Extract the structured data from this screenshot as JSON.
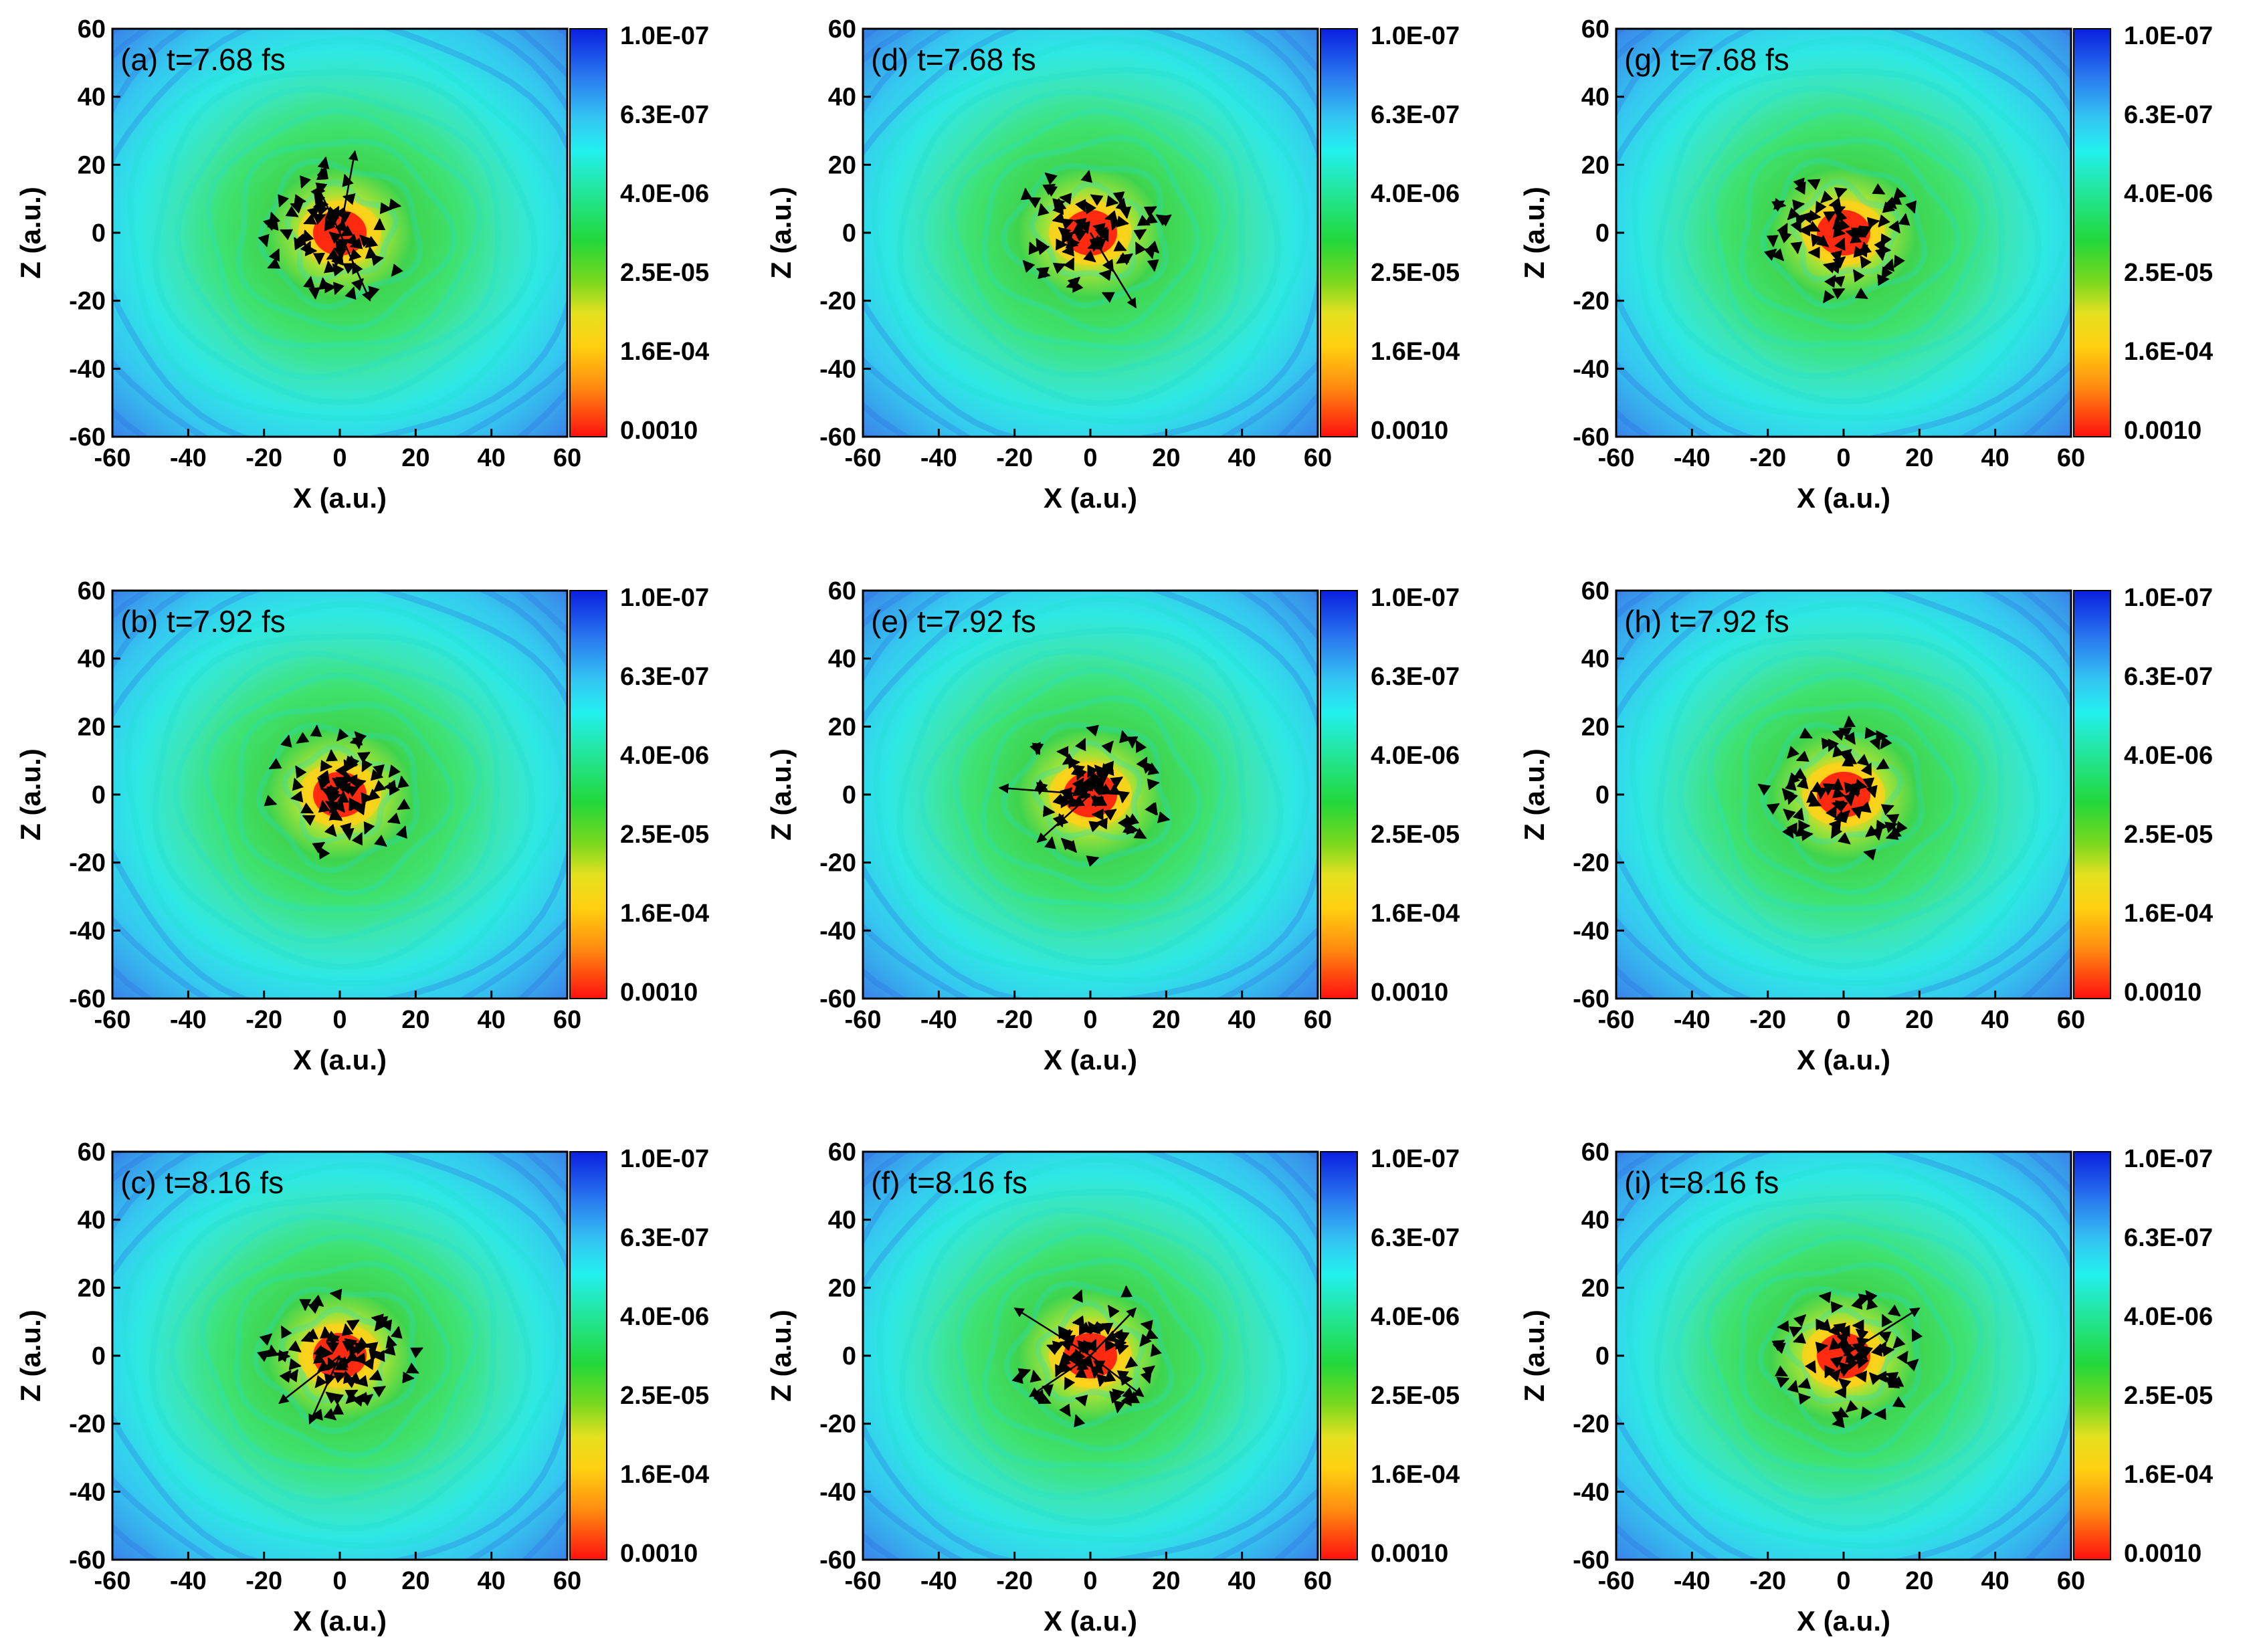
{
  "figure": {
    "description_title": ""
  },
  "chart_data": [
    {
      "type": "heatmap",
      "panel": "(a)",
      "title": "(a) t=7.68 fs",
      "xlabel": "X (a.u.)",
      "ylabel": "Z (a.u.)",
      "xlim": [
        -60,
        60
      ],
      "ylim": [
        -60,
        60
      ],
      "xticks": [
        -60,
        -40,
        -20,
        0,
        20,
        40,
        60
      ],
      "yticks": [
        60,
        40,
        20,
        0,
        -20,
        -40,
        -60
      ],
      "colorbar_ticks": [
        "1.0E-07",
        "6.3E-07",
        "4.0E-06",
        "2.5E-05",
        "1.6E-04",
        "0.0010"
      ],
      "colorbar_scale": "log",
      "colorbar_range": [
        1e-07,
        0.001
      ],
      "core_center": [
        0,
        0
      ],
      "arrows": [
        [
          0,
          0,
          4,
          24
        ],
        [
          0,
          0,
          -6,
          14
        ],
        [
          0,
          0,
          8,
          -20
        ]
      ]
    },
    {
      "type": "heatmap",
      "panel": "(b)",
      "title": "(b) t=7.92 fs",
      "xlabel": "X (a.u.)",
      "ylabel": "Z (a.u.)",
      "xlim": [
        -60,
        60
      ],
      "ylim": [
        -60,
        60
      ],
      "xticks": [
        -60,
        -40,
        -20,
        0,
        20,
        40,
        60
      ],
      "yticks": [
        60,
        40,
        20,
        0,
        -20,
        -40,
        -60
      ],
      "colorbar_ticks": [
        "1.0E-07",
        "6.3E-07",
        "4.0E-06",
        "2.5E-05",
        "1.6E-04",
        "0.0010"
      ],
      "colorbar_scale": "log",
      "colorbar_range": [
        1e-07,
        0.001
      ],
      "core_center": [
        0,
        0
      ],
      "arrows": []
    },
    {
      "type": "heatmap",
      "panel": "(c)",
      "title": "(c) t=8.16 fs",
      "xlabel": "X (a.u.)",
      "ylabel": "Z (a.u.)",
      "xlim": [
        -60,
        60
      ],
      "ylim": [
        -60,
        60
      ],
      "xticks": [
        -60,
        -40,
        -20,
        0,
        20,
        40,
        60
      ],
      "yticks": [
        60,
        40,
        20,
        0,
        -20,
        -40,
        -60
      ],
      "colorbar_ticks": [
        "1.0E-07",
        "6.3E-07",
        "4.0E-06",
        "2.5E-05",
        "1.6E-04",
        "0.0010"
      ],
      "colorbar_scale": "log",
      "colorbar_range": [
        1e-07,
        0.001
      ],
      "core_center": [
        0,
        0
      ],
      "arrows": [
        [
          0,
          0,
          -16,
          -14
        ],
        [
          0,
          0,
          -8,
          -20
        ]
      ]
    },
    {
      "type": "heatmap",
      "panel": "(d)",
      "title": "(d) t=7.68 fs",
      "xlabel": "X (a.u.)",
      "ylabel": "Z (a.u.)",
      "xlim": [
        -60,
        60
      ],
      "ylim": [
        -60,
        60
      ],
      "xticks": [
        -60,
        -40,
        -20,
        0,
        20,
        40,
        60
      ],
      "yticks": [
        60,
        40,
        20,
        0,
        -20,
        -40,
        -60
      ],
      "colorbar_ticks": [
        "1.0E-07",
        "6.3E-07",
        "4.0E-06",
        "2.5E-05",
        "1.6E-04",
        "0.0010"
      ],
      "colorbar_scale": "log",
      "colorbar_range": [
        1e-07,
        0.001
      ],
      "core_center": [
        0,
        0
      ],
      "arrows": [
        [
          0,
          0,
          12,
          -22
        ]
      ]
    },
    {
      "type": "heatmap",
      "panel": "(e)",
      "title": "(e) t=7.92 fs",
      "xlabel": "X (a.u.)",
      "ylabel": "Z (a.u.)",
      "xlim": [
        -60,
        60
      ],
      "ylim": [
        -60,
        60
      ],
      "xticks": [
        -60,
        -40,
        -20,
        0,
        20,
        40,
        60
      ],
      "yticks": [
        60,
        40,
        20,
        0,
        -20,
        -40,
        -60
      ],
      "colorbar_ticks": [
        "1.0E-07",
        "6.3E-07",
        "4.0E-06",
        "2.5E-05",
        "1.6E-04",
        "0.0010"
      ],
      "colorbar_scale": "log",
      "colorbar_range": [
        1e-07,
        0.001
      ],
      "core_center": [
        0,
        0
      ],
      "arrows": [
        [
          0,
          0,
          -24,
          2
        ],
        [
          0,
          0,
          -14,
          -14
        ]
      ]
    },
    {
      "type": "heatmap",
      "panel": "(f)",
      "title": "(f) t=8.16 fs",
      "xlabel": "X (a.u.)",
      "ylabel": "Z (a.u.)",
      "xlim": [
        -60,
        60
      ],
      "ylim": [
        -60,
        60
      ],
      "xticks": [
        -60,
        -40,
        -20,
        0,
        20,
        40,
        60
      ],
      "yticks": [
        60,
        40,
        20,
        0,
        -20,
        -40,
        -60
      ],
      "colorbar_ticks": [
        "1.0E-07",
        "6.3E-07",
        "4.0E-06",
        "2.5E-05",
        "1.6E-04",
        "0.0010"
      ],
      "colorbar_scale": "log",
      "colorbar_range": [
        1e-07,
        0.001
      ],
      "core_center": [
        0,
        0
      ],
      "arrows": [
        [
          0,
          0,
          -20,
          14
        ],
        [
          0,
          0,
          12,
          14
        ],
        [
          0,
          0,
          -16,
          -12
        ],
        [
          0,
          0,
          14,
          -12
        ]
      ]
    },
    {
      "type": "heatmap",
      "panel": "(g)",
      "title": "(g) t=7.68 fs",
      "xlabel": "X (a.u.)",
      "ylabel": "Z (a.u.)",
      "xlim": [
        -60,
        60
      ],
      "ylim": [
        -60,
        60
      ],
      "xticks": [
        -60,
        -40,
        -20,
        0,
        20,
        40,
        60
      ],
      "yticks": [
        60,
        40,
        20,
        0,
        -20,
        -40,
        -60
      ],
      "colorbar_ticks": [
        "1.0E-07",
        "6.3E-07",
        "4.0E-06",
        "2.5E-05",
        "1.6E-04",
        "0.0010"
      ],
      "colorbar_scale": "log",
      "colorbar_range": [
        1e-07,
        0.001
      ],
      "core_center": [
        0,
        0
      ],
      "arrows": []
    },
    {
      "type": "heatmap",
      "panel": "(h)",
      "title": "(h) t=7.92 fs",
      "xlabel": "X (a.u.)",
      "ylabel": "Z (a.u.)",
      "xlim": [
        -60,
        60
      ],
      "ylim": [
        -60,
        60
      ],
      "xticks": [
        -60,
        -40,
        -20,
        0,
        20,
        40,
        60
      ],
      "yticks": [
        60,
        40,
        20,
        0,
        -20,
        -40,
        -60
      ],
      "colorbar_ticks": [
        "1.0E-07",
        "6.3E-07",
        "4.0E-06",
        "2.5E-05",
        "1.6E-04",
        "0.0010"
      ],
      "colorbar_scale": "log",
      "colorbar_range": [
        1e-07,
        0.001
      ],
      "core_center": [
        0,
        0
      ],
      "arrows": []
    },
    {
      "type": "heatmap",
      "panel": "(i)",
      "title": "(i) t=8.16 fs",
      "xlabel": "X (a.u.)",
      "ylabel": "Z (a.u.)",
      "xlim": [
        -60,
        60
      ],
      "ylim": [
        -60,
        60
      ],
      "xticks": [
        -60,
        -40,
        -20,
        0,
        20,
        40,
        60
      ],
      "yticks": [
        60,
        40,
        20,
        0,
        -20,
        -40,
        -60
      ],
      "colorbar_ticks": [
        "1.0E-07",
        "6.3E-07",
        "4.0E-06",
        "2.5E-05",
        "1.6E-04",
        "0.0010"
      ],
      "colorbar_scale": "log",
      "colorbar_range": [
        1e-07,
        0.001
      ],
      "core_center": [
        0,
        0
      ],
      "arrows": [
        [
          0,
          0,
          20,
          14
        ]
      ]
    }
  ]
}
